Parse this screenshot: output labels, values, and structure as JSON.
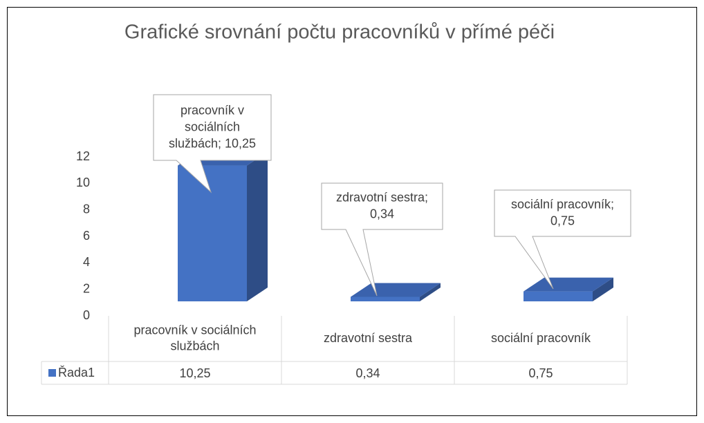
{
  "chart_data": {
    "type": "bar3d",
    "title": "Grafické srovnání počtu pracovníků v přímé péči",
    "categories": [
      "pracovník v sociálních službách",
      "zdravotní sestra",
      "sociální pracovník"
    ],
    "series": [
      {
        "name": "Řada1",
        "color": "#4472c4",
        "values": [
          10.25,
          0.34,
          0.75
        ],
        "value_labels": [
          "10,25",
          "0,34",
          "0,75"
        ],
        "data_labels": [
          "pracovník v sociálních službách; 10,25",
          "zdravotní sestra; 0,34",
          "sociální pracovník; 0,75"
        ]
      }
    ],
    "ylim": [
      0,
      12
    ],
    "yticks": [
      0,
      2,
      4,
      6,
      8,
      10,
      12
    ]
  }
}
